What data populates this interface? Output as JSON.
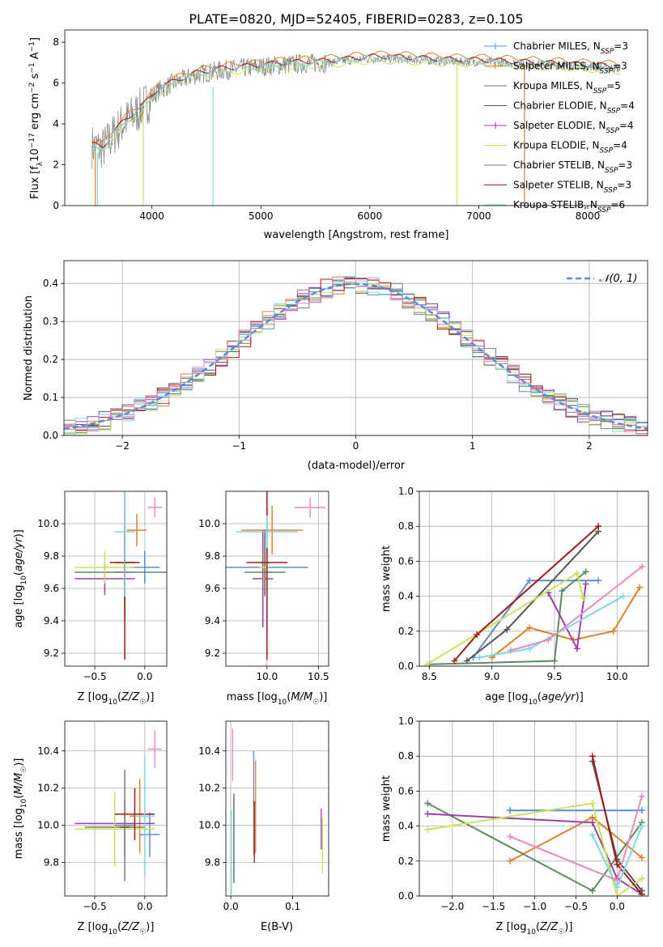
{
  "figure_title": "PLATE=0820, MJD=52405, FIBERID=0283, z=0.105",
  "colors": {
    "Chabrier MILES": "#5b8bd6",
    "Salpeter MILES": "#e0822a",
    "Kroupa MILES": "#5e8a62",
    "Chabrier ELODIE": "#555555",
    "Salpeter ELODIE": "#9b3fb0",
    "Kroupa ELODIE": "#c8e45a",
    "Chabrier STELIB": "#7d7d7d",
    "Salpeter STELIB": "#a01c1c",
    "Kroupa STELIB": "#7dd8e0",
    "pink": "#e88bbf",
    "normal": "#5b8bd6"
  },
  "chart_data": [
    {
      "id": "spectrum",
      "type": "line",
      "title": "PLATE=0820, MJD=52405, FIBERID=0283, z=0.105",
      "xlabel": "wavelength [Angstrom, rest frame]",
      "ylabel": "Flux [fλ10⁻¹⁷ erg cm⁻² s⁻¹ A⁻¹]",
      "xlim": [
        3200,
        8550
      ],
      "ylim": [
        0,
        8.6
      ],
      "xticks": [
        4000,
        5000,
        6000,
        7000,
        8000
      ],
      "yticks": [
        0,
        2,
        4,
        6,
        8
      ],
      "grid": false,
      "legend_position": "right",
      "legend": [
        "Chabrier MILES, N_SSP=3",
        "Salpeter MILES, N_SSP=3",
        "Kroupa MILES, N_SSP=5",
        "Chabrier ELODIE, N_SSP=4",
        "Salpeter ELODIE, N_SSP=4",
        "Kroupa ELODIE, N_SSP=4",
        "Chabrier STELIB, N_SSP=3",
        "Salpeter STELIB, N_SSP=3",
        "Kroupa STELIB, N_SSP=6"
      ],
      "legend_labels": [
        {
          "pre": "Chabrier MILES, N",
          "sub": "SSP",
          "post": "=3"
        },
        {
          "pre": "Salpeter MILES, N",
          "sub": "SSP",
          "post": "=3"
        },
        {
          "pre": "Kroupa MILES, N",
          "sub": "SSP",
          "post": "=5"
        },
        {
          "pre": "Chabrier ELODIE, N",
          "sub": "SSP",
          "post": "=4"
        },
        {
          "pre": "Salpeter ELODIE, N",
          "sub": "SSP",
          "post": "=4"
        },
        {
          "pre": "Kroupa ELODIE, N",
          "sub": "SSP",
          "post": "=4"
        },
        {
          "pre": "Chabrier STELIB, N",
          "sub": "SSP",
          "post": "=3"
        },
        {
          "pre": "Salpeter STELIB, N",
          "sub": "SSP",
          "post": "=3"
        },
        {
          "pre": "Kroupa STELIB, N",
          "sub": "SSP",
          "post": "=6"
        }
      ],
      "continuum": {
        "x": [
          3450,
          3550,
          3650,
          3750,
          3850,
          3950,
          4050,
          4200,
          4400,
          4600,
          4800,
          5000,
          5200,
          5400,
          5600,
          5800,
          6000,
          6200,
          6400,
          6600,
          6800,
          7000,
          7200,
          7400,
          7600,
          7800,
          8000,
          8200,
          8300
        ],
        "y": [
          2.9,
          2.8,
          3.5,
          4.1,
          4.5,
          5.0,
          5.6,
          6.0,
          6.4,
          6.6,
          6.7,
          6.8,
          6.9,
          6.95,
          7.0,
          7.1,
          7.2,
          7.2,
          7.15,
          7.1,
          7.05,
          7.05,
          7.0,
          6.95,
          6.9,
          6.85,
          6.8,
          6.75,
          6.7
        ]
      },
      "drop_lines": [
        {
          "x": 3480,
          "y0": 0,
          "y1": 2.6,
          "series": "Salpeter MILES"
        },
        {
          "x": 3500,
          "y0": 0,
          "y1": 2.6,
          "series": "Kroupa STELIB"
        },
        {
          "x": 3920,
          "y0": 0,
          "y1": 4.5,
          "series": "Kroupa ELODIE"
        },
        {
          "x": 4560,
          "y0": 0,
          "y1": 5.8,
          "series": "Kroupa STELIB"
        },
        {
          "x": 6800,
          "y0": 0,
          "y1": 7.0,
          "series": "Kroupa ELODIE"
        },
        {
          "x": 7420,
          "y0": 0,
          "y1": 6.9,
          "series": "Salpeter MILES"
        }
      ]
    },
    {
      "id": "residuals",
      "type": "histogram",
      "xlabel": "(data-model)/error",
      "ylabel": "Normed distribution",
      "xlim": [
        -2.5,
        2.5
      ],
      "ylim": [
        0,
        0.46
      ],
      "xticks": [
        -2,
        -1,
        0,
        1,
        2
      ],
      "yticks": [
        0.0,
        0.1,
        0.2,
        0.3,
        0.4
      ],
      "grid": true,
      "bin_width": 0.1,
      "legend": [
        "𝒩(0, 1)"
      ],
      "legend_position": "top-right",
      "reference_curve": "normal(0,1)"
    },
    {
      "id": "age_vs_Z",
      "type": "errorbar",
      "xlabel": "Z [log10(Z/Z☉)]",
      "ylabel": "age  [log10(age/yr)]",
      "xlim": [
        -0.8,
        0.22
      ],
      "ylim": [
        9.12,
        10.2
      ],
      "xticks": [
        -0.5,
        0.0
      ],
      "yticks": [
        9.2,
        9.4,
        9.6,
        9.8,
        10.0
      ],
      "grid": true,
      "points": [
        {
          "series": "Chabrier MILES",
          "x": 0.0,
          "y": 9.73,
          "xerr": 0.15,
          "yerr": 0.1
        },
        {
          "series": "Salpeter MILES",
          "x": -0.08,
          "y": 9.96,
          "xerr": 0.1,
          "yerr": 0.1
        },
        {
          "series": "Kroupa MILES",
          "x": -0.2,
          "y": 9.7,
          "xerr": 0.5,
          "yerr": 0.25
        },
        {
          "series": "Chabrier ELODIE",
          "x": -0.2,
          "y": 9.76,
          "xerr": 0.1,
          "yerr": 0.2
        },
        {
          "series": "Salpeter ELODIE",
          "x": -0.4,
          "y": 9.66,
          "xerr": 0.3,
          "yerr": 0.1
        },
        {
          "series": "Kroupa ELODIE",
          "x": -0.4,
          "y": 9.73,
          "xerr": 0.3,
          "yerr": 0.1
        },
        {
          "series": "Chabrier STELIB",
          "x": -0.2,
          "y": 9.7,
          "xerr": 0.1,
          "yerr": 0.3
        },
        {
          "series": "Salpeter STELIB",
          "x": -0.2,
          "y": 9.76,
          "xerr": 0.15,
          "yerr": 0.6
        },
        {
          "series": "Kroupa STELIB",
          "x": -0.2,
          "y": 9.95,
          "xerr": 0.1,
          "yerr": 0.4
        },
        {
          "series": "pink",
          "x": 0.1,
          "y": 10.1,
          "xerr": 0.07,
          "yerr": 0.06
        }
      ]
    },
    {
      "id": "age_vs_mass",
      "type": "errorbar",
      "xlabel": "mass [log10(M/M☉)]",
      "ylabel": "",
      "xlim": [
        9.6,
        10.6
      ],
      "ylim": [
        9.12,
        10.2
      ],
      "xticks": [
        10.0,
        10.5
      ],
      "yticks": [
        9.2,
        9.4,
        9.6,
        9.8,
        10.0
      ],
      "grid": true,
      "points": [
        {
          "series": "Chabrier MILES",
          "x": 10.0,
          "y": 9.73,
          "xerr": 0.4,
          "yerr": 0.4
        },
        {
          "series": "Salpeter MILES",
          "x": 10.05,
          "y": 9.96,
          "xerr": 0.3,
          "yerr": 0.15
        },
        {
          "series": "Kroupa MILES",
          "x": 9.98,
          "y": 9.7,
          "xerr": 0.2,
          "yerr": 0.15
        },
        {
          "series": "Chabrier ELODIE",
          "x": 9.98,
          "y": 9.76,
          "xerr": 0.05,
          "yerr": 0.2
        },
        {
          "series": "Salpeter ELODIE",
          "x": 9.96,
          "y": 9.66,
          "xerr": 0.1,
          "yerr": 0.3
        },
        {
          "series": "Kroupa ELODIE",
          "x": 9.97,
          "y": 9.73,
          "xerr": 0.05,
          "yerr": 0.1
        },
        {
          "series": "Chabrier STELIB",
          "x": 10.0,
          "y": 9.7,
          "xerr": 0.05,
          "yerr": 0.3
        },
        {
          "series": "Salpeter STELIB",
          "x": 10.0,
          "y": 9.76,
          "xerr": 0.2,
          "yerr": 0.6
        },
        {
          "series": "Kroupa STELIB",
          "x": 10.0,
          "y": 9.95,
          "xerr": 0.3,
          "yerr": 0.1
        },
        {
          "series": "pink",
          "x": 10.42,
          "y": 10.1,
          "xerr": 0.15,
          "yerr": 0.06
        }
      ]
    },
    {
      "id": "weight_vs_age",
      "type": "line",
      "xlabel": "age  [log10(age/yr)]",
      "ylabel": "mass weight",
      "xlim": [
        8.42,
        10.25
      ],
      "ylim": [
        0,
        1.0
      ],
      "xticks": [
        8.5,
        9.0,
        9.5,
        10.0
      ],
      "yticks": [
        0.0,
        0.2,
        0.4,
        0.6,
        0.8,
        1.0
      ],
      "grid": true,
      "series": [
        {
          "name": "Chabrier MILES",
          "x": [
            8.85,
            9.3,
            9.85
          ],
          "y": [
            0.05,
            0.49,
            0.49
          ]
        },
        {
          "name": "Salpeter MILES",
          "x": [
            9.0,
            9.3,
            9.65,
            9.97,
            10.18
          ],
          "y": [
            0.05,
            0.22,
            0.15,
            0.2,
            0.45
          ]
        },
        {
          "name": "Kroupa MILES",
          "x": [
            8.5,
            9.5,
            9.56,
            9.75
          ],
          "y": [
            0.01,
            0.03,
            0.43,
            0.54
          ]
        },
        {
          "name": "Chabrier ELODIE",
          "x": [
            8.8,
            9.12,
            9.85
          ],
          "y": [
            0.03,
            0.21,
            0.77
          ]
        },
        {
          "name": "Salpeter ELODIE",
          "x": [
            9.45,
            9.68,
            9.75
          ],
          "y": [
            0.42,
            0.1,
            0.47
          ]
        },
        {
          "name": "Kroupa ELODIE",
          "x": [
            8.48,
            9.68,
            9.73
          ],
          "y": [
            0.01,
            0.53,
            0.39
          ]
        },
        {
          "name": "Salpeter STELIB",
          "x": [
            8.7,
            8.88,
            9.85
          ],
          "y": [
            0.03,
            0.18,
            0.8
          ]
        },
        {
          "name": "Kroupa STELIB",
          "x": [
            8.9,
            9.3,
            10.05
          ],
          "y": [
            0.05,
            0.1,
            0.4
          ]
        },
        {
          "name": "pink",
          "x": [
            9.15,
            9.45,
            10.2
          ],
          "y": [
            0.09,
            0.15,
            0.57
          ]
        }
      ]
    },
    {
      "id": "mass_vs_Z",
      "type": "errorbar",
      "xlabel": "Z [log10(Z/Z☉)]",
      "ylabel": "mass [log10(M/M☉)]",
      "xlim": [
        -0.8,
        0.22
      ],
      "ylim": [
        9.62,
        10.56
      ],
      "xticks": [
        -0.5,
        0.0
      ],
      "yticks": [
        9.8,
        10.0,
        10.2,
        10.4
      ],
      "grid": true,
      "points": [
        {
          "series": "Chabrier MILES",
          "x": 0.05,
          "y": 9.95,
          "xerr": 0.1,
          "yerr": 0.12
        },
        {
          "series": "Salpeter MILES",
          "x": -0.05,
          "y": 10.05,
          "xerr": 0.1,
          "yerr": 0.2
        },
        {
          "series": "Kroupa MILES",
          "x": -0.3,
          "y": 9.99,
          "xerr": 0.3,
          "yerr": 0.15
        },
        {
          "series": "Chabrier ELODIE",
          "x": -0.2,
          "y": 9.99,
          "xerr": 0.05,
          "yerr": 0.15
        },
        {
          "series": "Salpeter ELODIE",
          "x": -0.3,
          "y": 10.01,
          "xerr": 0.4,
          "yerr": 0.15
        },
        {
          "series": "Kroupa ELODIE",
          "x": -0.3,
          "y": 9.98,
          "xerr": 0.4,
          "yerr": 0.2
        },
        {
          "series": "Chabrier STELIB",
          "x": -0.2,
          "y": 10.0,
          "xerr": 0.1,
          "yerr": 0.3
        },
        {
          "series": "Salpeter STELIB",
          "x": -0.1,
          "y": 10.06,
          "xerr": 0.2,
          "yerr": 0.14
        },
        {
          "series": "Kroupa STELIB",
          "x": 0.0,
          "y": 10.05,
          "xerr": 0.1,
          "yerr": 0.32
        },
        {
          "series": "pink",
          "x": 0.1,
          "y": 10.41,
          "xerr": 0.07,
          "yerr": 0.1
        }
      ]
    },
    {
      "id": "mass_vs_ebv",
      "type": "errorbar",
      "xlabel": "E(B-V)",
      "ylabel": "",
      "xlim": [
        -0.008,
        0.158
      ],
      "ylim": [
        9.62,
        10.56
      ],
      "xticks": [
        0.0,
        0.1
      ],
      "yticks": [
        9.8,
        10.0,
        10.2,
        10.4
      ],
      "grid": true,
      "vlines": [
        {
          "series": "pink",
          "x": 0.003,
          "y0": 10.24,
          "y1": 10.52
        },
        {
          "series": "Kroupa STELIB",
          "x": 0.001,
          "y0": 9.63,
          "y1": 10.08
        },
        {
          "series": "Chabrier ELODIE",
          "x": 0.005,
          "y0": 9.69,
          "y1": 10.17
        },
        {
          "series": "Chabrier MILES",
          "x": 0.037,
          "y0": 9.84,
          "y1": 10.4
        },
        {
          "series": "Salpeter MILES",
          "x": 0.04,
          "y0": 9.85,
          "y1": 10.35
        },
        {
          "series": "Salpeter STELIB",
          "x": 0.038,
          "y0": 9.8,
          "y1": 10.13
        },
        {
          "series": "Salpeter ELODIE",
          "x": 0.146,
          "y0": 9.87,
          "y1": 10.09
        },
        {
          "series": "Kroupa ELODIE",
          "x": 0.148,
          "y0": 9.74,
          "y1": 10.04
        }
      ]
    },
    {
      "id": "weight_vs_Z",
      "type": "line",
      "xlabel": "Z [log10(Z/Z☉)]",
      "ylabel": "mass weight",
      "xlim": [
        -2.4,
        0.38
      ],
      "ylim": [
        0,
        1.0
      ],
      "xticks": [
        -2.0,
        -1.5,
        -1.0,
        -0.5,
        0.0
      ],
      "yticks": [
        0.0,
        0.2,
        0.4,
        0.6,
        0.8,
        1.0
      ],
      "grid": true,
      "series": [
        {
          "name": "Chabrier MILES",
          "x": [
            -1.3,
            0.3
          ],
          "y": [
            0.49,
            0.49
          ]
        },
        {
          "name": "Salpeter MILES",
          "x": [
            -1.3,
            -0.3,
            0.3
          ],
          "y": [
            0.2,
            0.45,
            0.22
          ]
        },
        {
          "name": "Kroupa MILES",
          "x": [
            -2.3,
            -0.3,
            0.3
          ],
          "y": [
            0.53,
            0.03,
            0.42
          ]
        },
        {
          "name": "Chabrier ELODIE",
          "x": [
            -0.3,
            0.0,
            0.3
          ],
          "y": [
            0.77,
            0.21,
            0.03
          ]
        },
        {
          "name": "Salpeter ELODIE",
          "x": [
            -2.3,
            -0.3,
            0.0,
            0.3
          ],
          "y": [
            0.47,
            0.42,
            0.1,
            0.01
          ]
        },
        {
          "name": "Kroupa ELODIE",
          "x": [
            -2.3,
            -0.3,
            0.0,
            0.3
          ],
          "y": [
            0.38,
            0.53,
            0.0,
            0.1
          ]
        },
        {
          "name": "Salpeter STELIB",
          "x": [
            -0.3,
            0.0,
            0.3
          ],
          "y": [
            0.8,
            0.18,
            0.01
          ]
        },
        {
          "name": "Kroupa STELIB",
          "x": [
            -0.3,
            0.0,
            0.3
          ],
          "y": [
            0.35,
            0.05,
            0.4
          ]
        },
        {
          "name": "pink",
          "x": [
            -1.3,
            0.0,
            0.3
          ],
          "y": [
            0.34,
            0.09,
            0.57
          ]
        }
      ]
    }
  ]
}
